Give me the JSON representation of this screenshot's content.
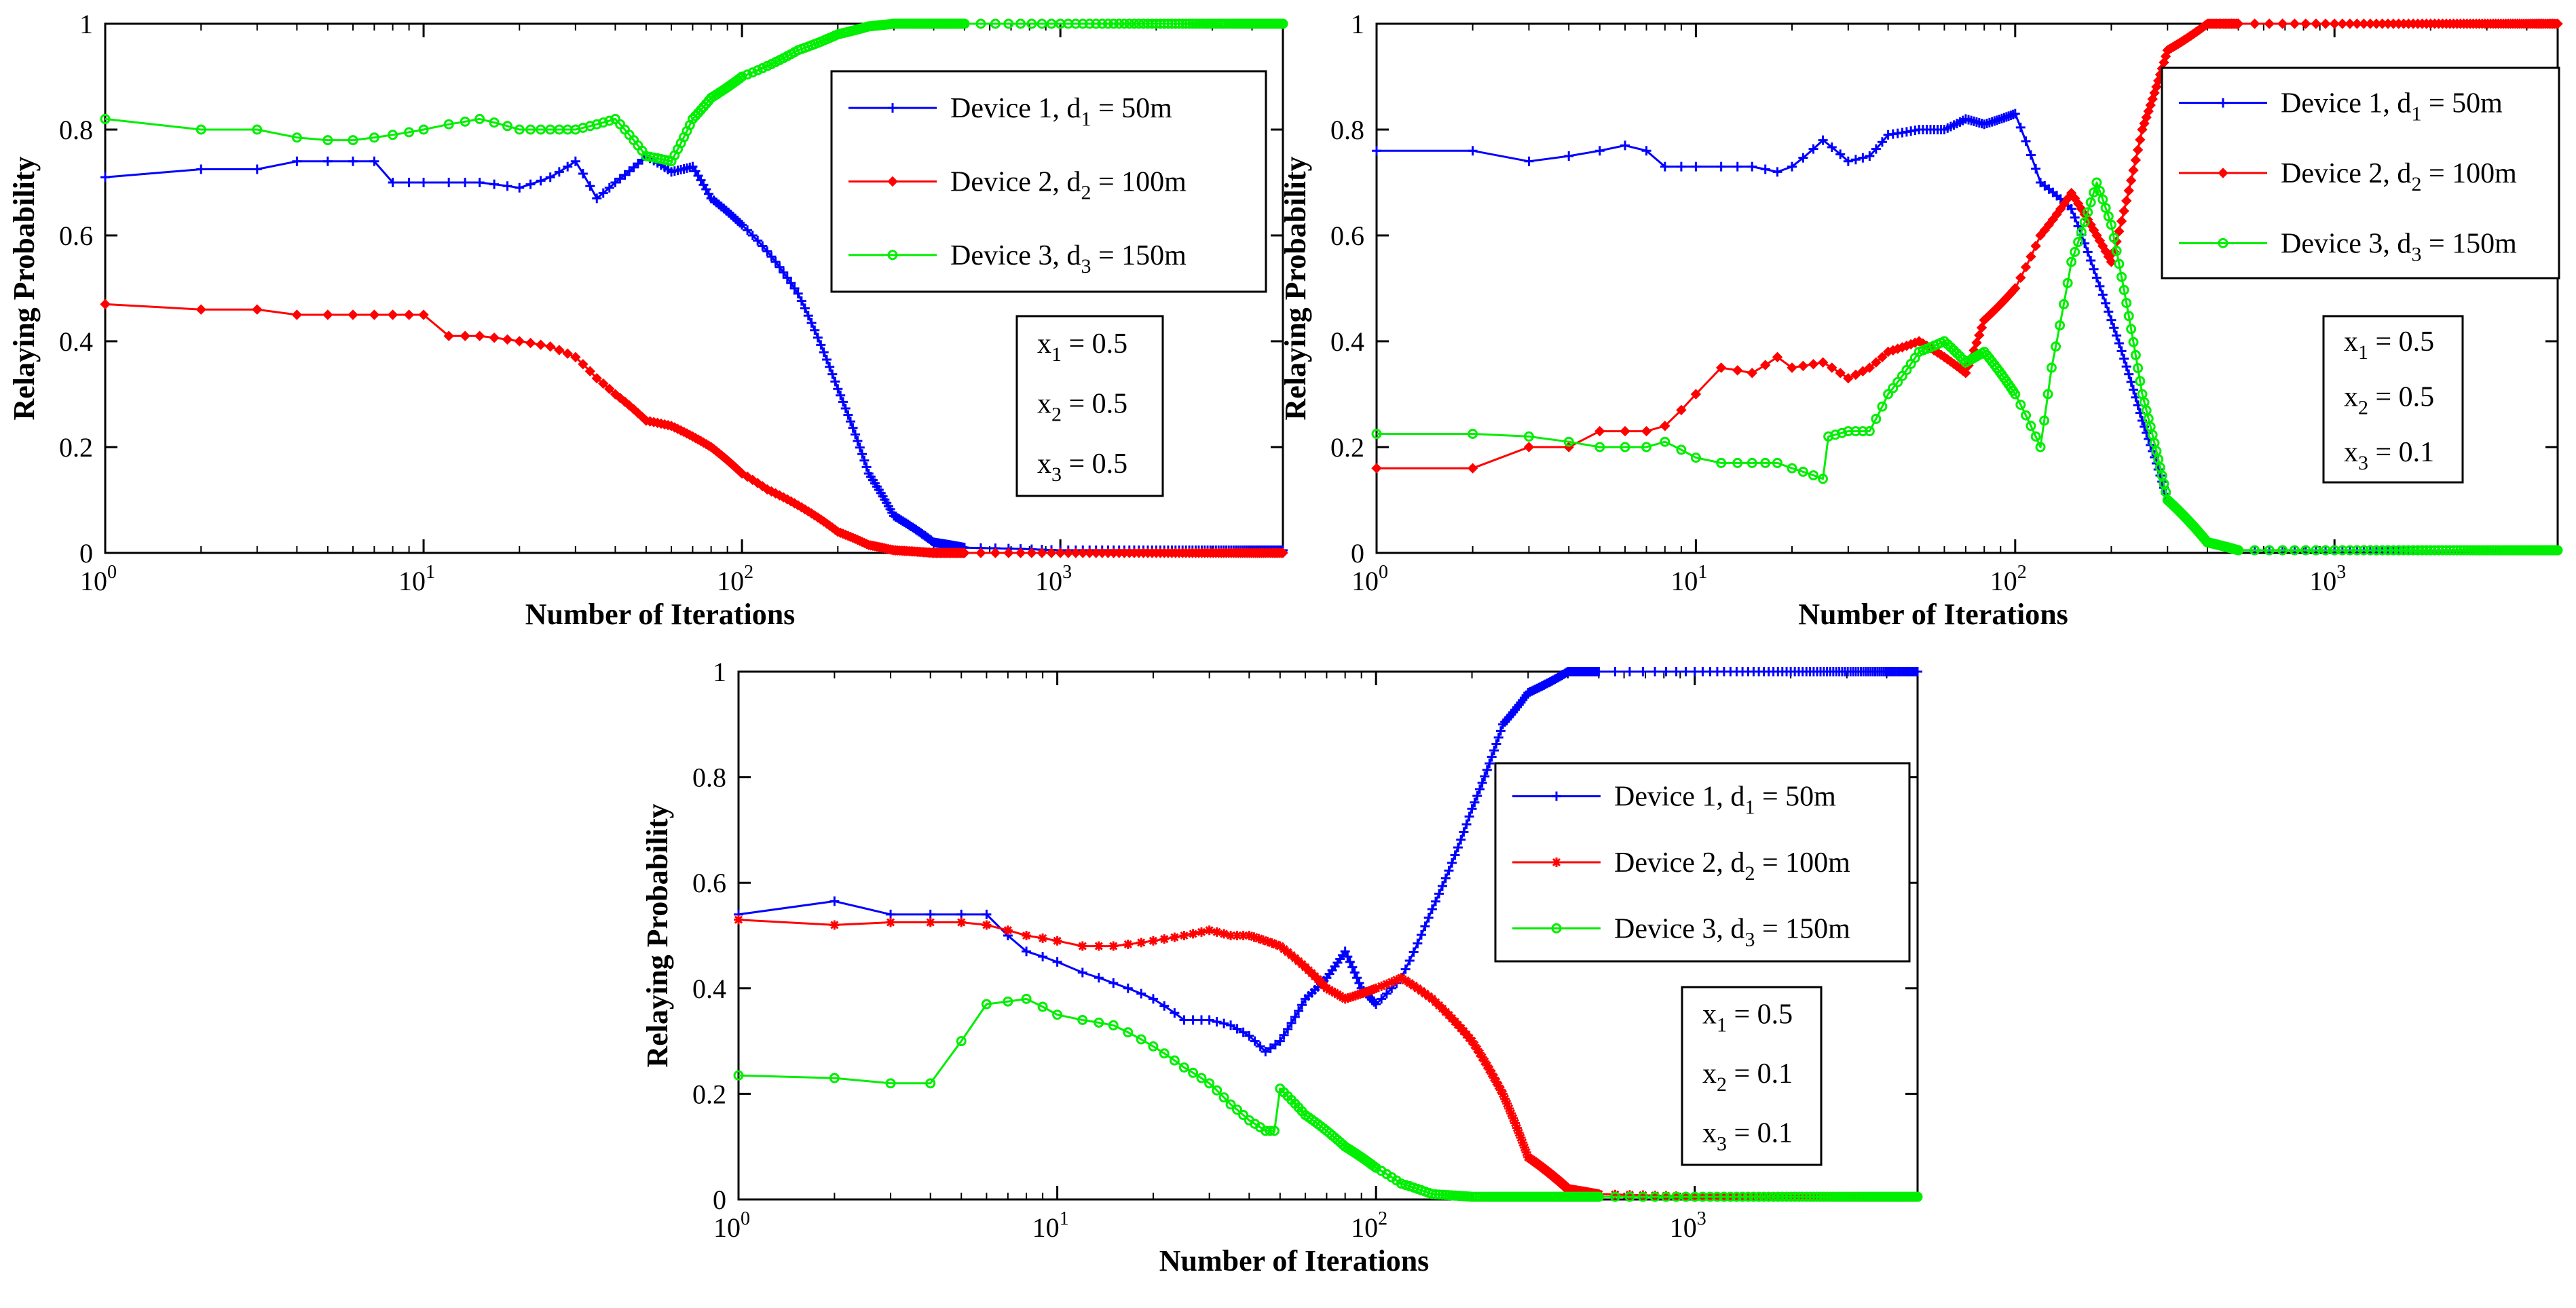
{
  "colors": {
    "device1": "#0000ff",
    "device2": "#ff0000",
    "device3": "#00ee00",
    "axis": "#000000"
  },
  "chart_data": [
    {
      "type": "line",
      "xscale": "log",
      "xlim": [
        1,
        5000
      ],
      "ylim": [
        0,
        1
      ],
      "xlabel": "Number of Iterations",
      "ylabel": "Relaying Probability",
      "xticks": [
        {
          "base": "10",
          "exp": "0"
        },
        {
          "base": "10",
          "exp": "1"
        },
        {
          "base": "10",
          "exp": "2"
        },
        {
          "base": "10",
          "exp": "3"
        }
      ],
      "yticks": [
        "0",
        "0.2",
        "0.4",
        "0.6",
        "0.8",
        "1"
      ],
      "legend": [
        {
          "pre": "Device 1, d",
          "sub": "1",
          "post": " = 50m"
        },
        {
          "pre": "Device 2, d",
          "sub": "2",
          "post": " = 100m"
        },
        {
          "pre": "Device 3, d",
          "sub": "3",
          "post": " = 150m"
        }
      ],
      "params": [
        {
          "pre": "x",
          "sub": "1",
          "post": " = 0.5"
        },
        {
          "pre": "x",
          "sub": "2",
          "post": " = 0.5"
        },
        {
          "pre": "x",
          "sub": "3",
          "post": " = 0.5"
        }
      ],
      "series": [
        {
          "name": "Device 1, d1 = 50m",
          "marker": "plus",
          "x": [
            1,
            2,
            3,
            4,
            5,
            6,
            7,
            8,
            10,
            12,
            15,
            20,
            25,
            30,
            35,
            40,
            50,
            60,
            70,
            80,
            100,
            120,
            150,
            200,
            250,
            300,
            400,
            500,
            1000,
            2000,
            5000
          ],
          "y": [
            0.71,
            0.725,
            0.725,
            0.74,
            0.74,
            0.74,
            0.74,
            0.7,
            0.7,
            0.7,
            0.7,
            0.69,
            0.71,
            0.74,
            0.67,
            0.7,
            0.75,
            0.72,
            0.73,
            0.67,
            0.62,
            0.57,
            0.49,
            0.31,
            0.15,
            0.07,
            0.02,
            0.01,
            0.005,
            0.005,
            0.005
          ]
        },
        {
          "name": "Device 2, d2 = 100m",
          "marker": "diamond",
          "x": [
            1,
            2,
            3,
            4,
            5,
            6,
            7,
            8,
            10,
            12,
            15,
            20,
            25,
            30,
            35,
            40,
            50,
            60,
            70,
            80,
            100,
            120,
            150,
            200,
            250,
            300,
            400,
            500,
            1000,
            2000,
            5000
          ],
          "y": [
            0.47,
            0.46,
            0.46,
            0.45,
            0.45,
            0.45,
            0.45,
            0.45,
            0.45,
            0.41,
            0.41,
            0.4,
            0.39,
            0.37,
            0.33,
            0.3,
            0.25,
            0.24,
            0.22,
            0.2,
            0.15,
            0.12,
            0.09,
            0.04,
            0.015,
            0.005,
            0.0,
            0.0,
            0.0,
            0.0,
            0.0
          ]
        },
        {
          "name": "Device 3, d3 = 150m",
          "marker": "circle",
          "x": [
            1,
            2,
            3,
            4,
            5,
            6,
            7,
            8,
            10,
            12,
            15,
            20,
            25,
            30,
            35,
            40,
            50,
            60,
            70,
            80,
            100,
            120,
            150,
            200,
            250,
            300,
            400,
            500,
            1000,
            2000,
            5000
          ],
          "y": [
            0.82,
            0.8,
            0.8,
            0.785,
            0.78,
            0.78,
            0.785,
            0.79,
            0.8,
            0.81,
            0.82,
            0.8,
            0.8,
            0.8,
            0.81,
            0.82,
            0.75,
            0.74,
            0.82,
            0.86,
            0.9,
            0.92,
            0.95,
            0.98,
            0.995,
            1.0,
            1.0,
            1.0,
            1.0,
            1.0,
            1.0
          ]
        }
      ]
    },
    {
      "type": "line",
      "xscale": "log",
      "xlim": [
        1,
        5000
      ],
      "ylim": [
        0,
        1
      ],
      "xlabel": "Number of Iterations",
      "ylabel": "Relaying Probability",
      "xticks": [
        {
          "base": "10",
          "exp": "0"
        },
        {
          "base": "10",
          "exp": "1"
        },
        {
          "base": "10",
          "exp": "2"
        },
        {
          "base": "10",
          "exp": "3"
        }
      ],
      "yticks": [
        "0",
        "0.2",
        "0.4",
        "0.6",
        "0.8",
        "1"
      ],
      "legend": [
        {
          "pre": "Device 1, d",
          "sub": "1",
          "post": " = 50m"
        },
        {
          "pre": "Device 2, d",
          "sub": "2",
          "post": " = 100m"
        },
        {
          "pre": "Device 3, d",
          "sub": "3",
          "post": " = 150m"
        }
      ],
      "params": [
        {
          "pre": "x",
          "sub": "1",
          "post": " = 0.5"
        },
        {
          "pre": "x",
          "sub": "2",
          "post": " = 0.5"
        },
        {
          "pre": "x",
          "sub": "3",
          "post": " = 0.1"
        }
      ],
      "series": [
        {
          "name": "Device 1, d1 = 50m",
          "marker": "plus",
          "x": [
            1,
            2,
            3,
            4,
            5,
            6,
            7,
            8,
            10,
            12,
            15,
            18,
            20,
            25,
            30,
            35,
            40,
            50,
            60,
            70,
            80,
            100,
            120,
            150,
            180,
            200,
            250,
            300,
            400,
            500,
            1000,
            2000,
            5000
          ],
          "y": [
            0.76,
            0.76,
            0.74,
            0.75,
            0.76,
            0.77,
            0.76,
            0.73,
            0.73,
            0.73,
            0.73,
            0.72,
            0.73,
            0.78,
            0.74,
            0.75,
            0.79,
            0.8,
            0.8,
            0.82,
            0.81,
            0.83,
            0.7,
            0.65,
            0.52,
            0.44,
            0.25,
            0.1,
            0.02,
            0.005,
            0.005,
            0.005,
            0.005
          ]
        },
        {
          "name": "Device 2, d2 = 100m",
          "marker": "diamond",
          "x": [
            1,
            2,
            3,
            4,
            5,
            6,
            7,
            8,
            10,
            12,
            15,
            18,
            20,
            25,
            30,
            35,
            40,
            50,
            60,
            70,
            80,
            100,
            120,
            150,
            180,
            200,
            250,
            300,
            400,
            500,
            1000,
            2000,
            5000
          ],
          "y": [
            0.16,
            0.16,
            0.2,
            0.2,
            0.23,
            0.23,
            0.23,
            0.24,
            0.3,
            0.35,
            0.34,
            0.37,
            0.35,
            0.36,
            0.33,
            0.35,
            0.38,
            0.4,
            0.37,
            0.34,
            0.44,
            0.5,
            0.6,
            0.68,
            0.6,
            0.55,
            0.8,
            0.95,
            1.0,
            1.0,
            1.0,
            1.0,
            1.0
          ]
        },
        {
          "name": "Device 3, d3 = 150m",
          "marker": "circle",
          "x": [
            1,
            2,
            3,
            4,
            5,
            6,
            7,
            8,
            10,
            12,
            15,
            18,
            20,
            25,
            26,
            30,
            35,
            40,
            50,
            60,
            70,
            80,
            100,
            120,
            130,
            150,
            180,
            200,
            250,
            300,
            400,
            500,
            1000,
            2000,
            5000
          ],
          "y": [
            0.225,
            0.225,
            0.22,
            0.21,
            0.2,
            0.2,
            0.2,
            0.21,
            0.18,
            0.17,
            0.17,
            0.17,
            0.16,
            0.14,
            0.22,
            0.23,
            0.23,
            0.3,
            0.38,
            0.4,
            0.36,
            0.38,
            0.3,
            0.2,
            0.35,
            0.55,
            0.7,
            0.62,
            0.3,
            0.1,
            0.02,
            0.005,
            0.005,
            0.005,
            0.005
          ]
        }
      ]
    },
    {
      "type": "line",
      "xscale": "log",
      "xlim": [
        1,
        5000
      ],
      "ylim": [
        0,
        1
      ],
      "xlabel": "Number of Iterations",
      "ylabel": "Relaying Probability",
      "xticks": [
        {
          "base": "10",
          "exp": "0"
        },
        {
          "base": "10",
          "exp": "1"
        },
        {
          "base": "10",
          "exp": "2"
        },
        {
          "base": "10",
          "exp": "3"
        }
      ],
      "yticks": [
        "0",
        "0.2",
        "0.4",
        "0.6",
        "0.8",
        "1"
      ],
      "legend": [
        {
          "pre": "Device 1, d",
          "sub": "1",
          "post": " = 50m"
        },
        {
          "pre": "Device 2, d",
          "sub": "2",
          "post": " = 100m"
        },
        {
          "pre": "Device 3, d",
          "sub": "3",
          "post": " = 150m"
        }
      ],
      "params": [
        {
          "pre": "x",
          "sub": "1",
          "post": " = 0.5"
        },
        {
          "pre": "x",
          "sub": "2",
          "post": " = 0.1"
        },
        {
          "pre": "x",
          "sub": "3",
          "post": " = 0.1"
        }
      ],
      "series": [
        {
          "name": "Device 1, d1 = 50m",
          "marker": "plus",
          "x": [
            1,
            2,
            3,
            4,
            5,
            6,
            7,
            8,
            10,
            12,
            15,
            20,
            25,
            30,
            35,
            40,
            45,
            50,
            60,
            70,
            80,
            90,
            100,
            120,
            150,
            200,
            250,
            300,
            400,
            500,
            1000,
            2000,
            5000
          ],
          "y": [
            0.54,
            0.565,
            0.54,
            0.54,
            0.54,
            0.54,
            0.5,
            0.47,
            0.45,
            0.43,
            0.41,
            0.38,
            0.34,
            0.34,
            0.33,
            0.31,
            0.28,
            0.3,
            0.38,
            0.42,
            0.47,
            0.4,
            0.37,
            0.42,
            0.55,
            0.74,
            0.9,
            0.96,
            1.0,
            1.0,
            1.0,
            1.0,
            1.0
          ]
        },
        {
          "name": "Device 2, d2 = 100m",
          "marker": "star",
          "x": [
            1,
            2,
            3,
            4,
            5,
            6,
            7,
            8,
            10,
            12,
            15,
            20,
            25,
            30,
            35,
            40,
            50,
            60,
            70,
            80,
            100,
            120,
            150,
            200,
            250,
            300,
            400,
            500,
            1000,
            2000,
            5000
          ],
          "y": [
            0.53,
            0.52,
            0.525,
            0.525,
            0.525,
            0.52,
            0.51,
            0.5,
            0.49,
            0.48,
            0.48,
            0.49,
            0.5,
            0.51,
            0.5,
            0.5,
            0.48,
            0.44,
            0.4,
            0.38,
            0.4,
            0.42,
            0.38,
            0.3,
            0.2,
            0.08,
            0.02,
            0.01,
            0.005,
            0.005,
            0.005
          ]
        },
        {
          "name": "Device 3, d3 = 150m",
          "marker": "circle",
          "x": [
            1,
            2,
            3,
            4,
            5,
            6,
            7,
            8,
            10,
            12,
            15,
            20,
            25,
            30,
            35,
            40,
            45,
            48,
            50,
            60,
            70,
            80,
            100,
            120,
            150,
            200,
            250,
            300,
            400,
            500,
            1000,
            2000,
            5000
          ],
          "y": [
            0.235,
            0.23,
            0.22,
            0.22,
            0.3,
            0.37,
            0.375,
            0.38,
            0.35,
            0.34,
            0.33,
            0.29,
            0.25,
            0.22,
            0.18,
            0.15,
            0.13,
            0.13,
            0.21,
            0.16,
            0.13,
            0.1,
            0.06,
            0.03,
            0.01,
            0.005,
            0.005,
            0.005,
            0.005,
            0.005,
            0.005,
            0.005,
            0.005
          ]
        }
      ]
    }
  ]
}
